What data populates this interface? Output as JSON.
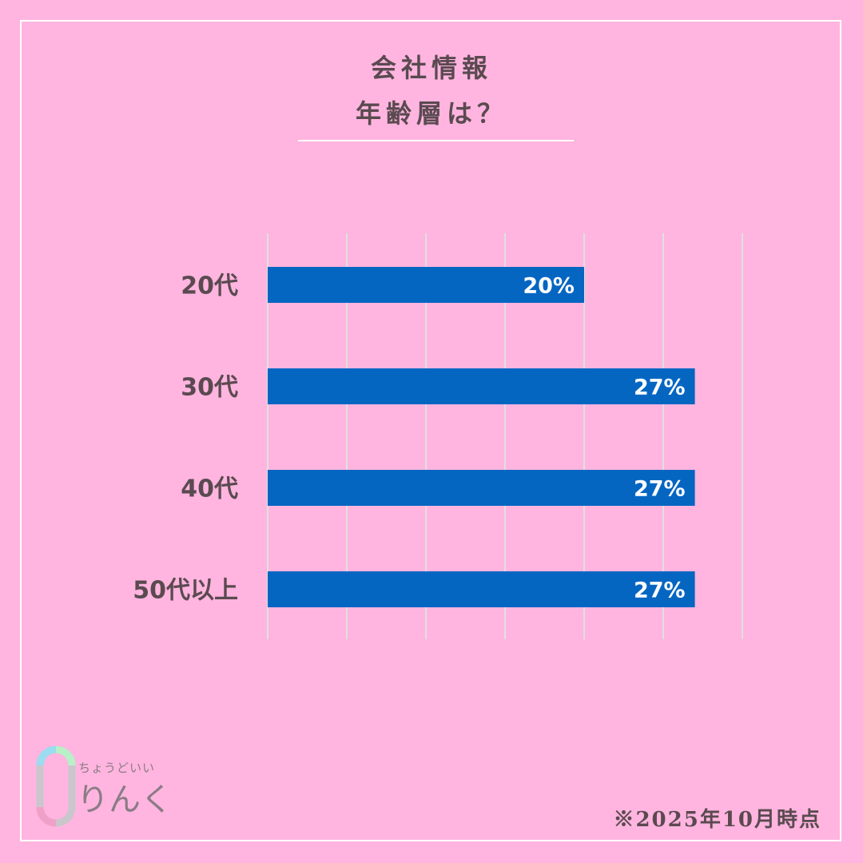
{
  "header": {
    "title_line1": "会社情報",
    "title_line2": "年齢層は？"
  },
  "chart_data": {
    "type": "bar",
    "orientation": "horizontal",
    "categories": [
      "20代",
      "30代",
      "40代",
      "50代以上"
    ],
    "values": [
      20,
      27,
      27,
      27
    ],
    "value_labels": [
      "20%",
      "27%",
      "27%",
      "27%"
    ],
    "xlim": [
      0,
      30
    ],
    "grid": true,
    "bar_color": "#0566C2",
    "grid_color": "#E0E0E0"
  },
  "footer": {
    "note": "※2025年10月時点"
  },
  "logo": {
    "sub": "ちょうどいい",
    "main": "りんく"
  },
  "colors": {
    "background": "#FFB5DF",
    "text": "#5A4A50",
    "accent": "#0566C2"
  }
}
